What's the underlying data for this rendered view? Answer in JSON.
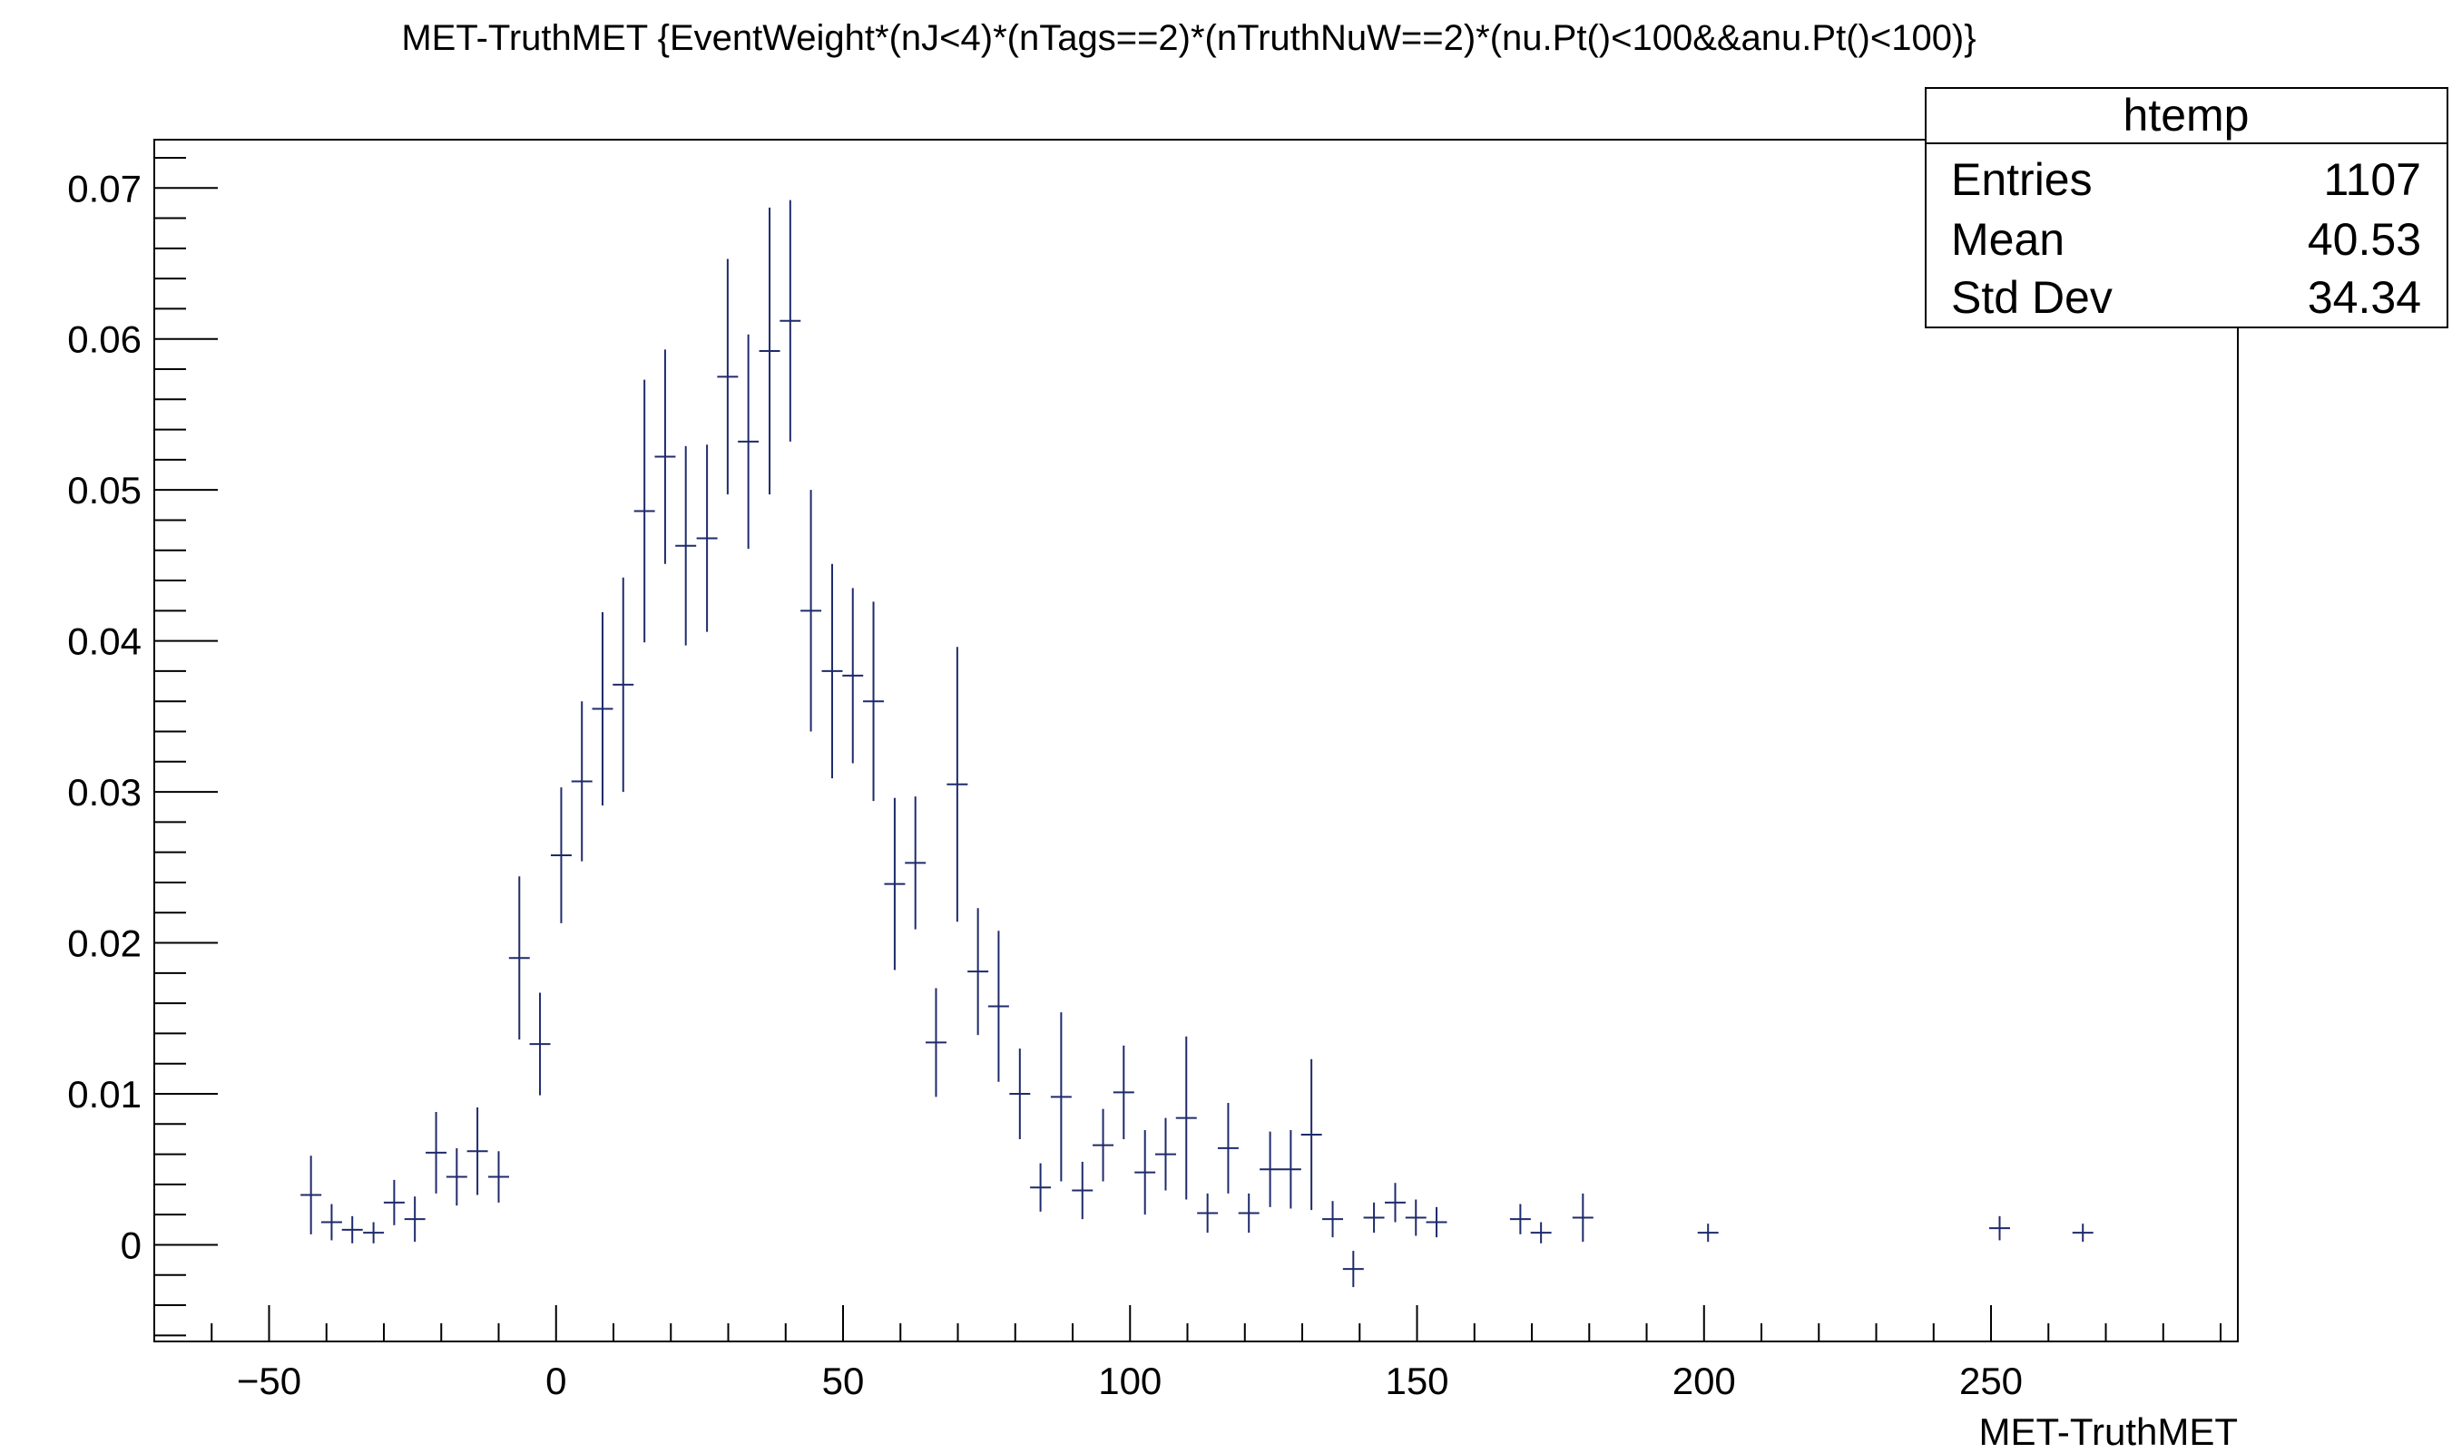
{
  "chart_data": {
    "type": "scatter",
    "title": "MET-TruthMET {EventWeight*(nJ<4)*(nTags==2)*(nTruthNuW==2)*(nu.Pt()<100&&anu.Pt()<100)}",
    "xlabel": "MET-TruthMET",
    "ylabel": "",
    "xlim": [
      -70,
      293
    ],
    "ylim": [
      -0.0064,
      0.0732
    ],
    "x_ticks": [
      -50,
      0,
      50,
      100,
      150,
      200,
      250
    ],
    "x_tick_labels": [
      "−50",
      "0",
      "50",
      "100",
      "150",
      "200",
      "250"
    ],
    "y_ticks": [
      0,
      0.01,
      0.02,
      0.03,
      0.04,
      0.05,
      0.06,
      0.07
    ],
    "y_tick_labels": [
      "0",
      "0.01",
      "0.02",
      "0.03",
      "0.04",
      "0.05",
      "0.06",
      "0.07"
    ],
    "bin_width": 3.63,
    "grid": false,
    "marker_color": "#1f2a6b",
    "points": [
      {
        "x": -42.7,
        "y": 0.0033,
        "err": 0.0026
      },
      {
        "x": -39.1,
        "y": 0.0015,
        "err": 0.0012
      },
      {
        "x": -35.5,
        "y": 0.001,
        "err": 0.0009
      },
      {
        "x": -31.8,
        "y": 0.0008,
        "err": 0.0007
      },
      {
        "x": -28.2,
        "y": 0.0028,
        "err": 0.0015
      },
      {
        "x": -24.6,
        "y": 0.0017,
        "err": 0.0015
      },
      {
        "x": -20.9,
        "y": 0.0061,
        "err": 0.0027
      },
      {
        "x": -17.3,
        "y": 0.0045,
        "err": 0.0019
      },
      {
        "x": -13.7,
        "y": 0.0062,
        "err": 0.0029
      },
      {
        "x": -10.0,
        "y": 0.0045,
        "err": 0.0017
      },
      {
        "x": -6.4,
        "y": 0.019,
        "err": 0.0054
      },
      {
        "x": -2.8,
        "y": 0.0133,
        "err": 0.0034
      },
      {
        "x": 0.9,
        "y": 0.0258,
        "err": 0.0045
      },
      {
        "x": 4.5,
        "y": 0.0307,
        "err": 0.0053
      },
      {
        "x": 8.1,
        "y": 0.0355,
        "err": 0.0064
      },
      {
        "x": 11.7,
        "y": 0.0371,
        "err": 0.0071
      },
      {
        "x": 15.4,
        "y": 0.0486,
        "err": 0.0087
      },
      {
        "x": 19.0,
        "y": 0.0522,
        "err": 0.0071
      },
      {
        "x": 22.6,
        "y": 0.0463,
        "err": 0.0066
      },
      {
        "x": 26.3,
        "y": 0.0468,
        "err": 0.0062
      },
      {
        "x": 29.9,
        "y": 0.0575,
        "err": 0.0078
      },
      {
        "x": 33.5,
        "y": 0.0532,
        "err": 0.0071
      },
      {
        "x": 37.2,
        "y": 0.0592,
        "err": 0.0095
      },
      {
        "x": 40.8,
        "y": 0.0612,
        "err": 0.008
      },
      {
        "x": 44.4,
        "y": 0.042,
        "err": 0.008
      },
      {
        "x": 48.1,
        "y": 0.038,
        "err": 0.0071
      },
      {
        "x": 51.7,
        "y": 0.0377,
        "err": 0.0058
      },
      {
        "x": 55.3,
        "y": 0.036,
        "err": 0.0066
      },
      {
        "x": 59.0,
        "y": 0.0239,
        "err": 0.0057
      },
      {
        "x": 62.6,
        "y": 0.0253,
        "err": 0.0044
      },
      {
        "x": 66.2,
        "y": 0.0134,
        "err": 0.0036
      },
      {
        "x": 69.9,
        "y": 0.0305,
        "err": 0.0091
      },
      {
        "x": 73.5,
        "y": 0.0181,
        "err": 0.0042
      },
      {
        "x": 77.1,
        "y": 0.0158,
        "err": 0.005
      },
      {
        "x": 80.8,
        "y": 0.01,
        "err": 0.003
      },
      {
        "x": 84.4,
        "y": 0.0038,
        "err": 0.0016
      },
      {
        "x": 88.0,
        "y": 0.0098,
        "err": 0.0056
      },
      {
        "x": 91.7,
        "y": 0.0036,
        "err": 0.0019
      },
      {
        "x": 95.3,
        "y": 0.0066,
        "err": 0.0024
      },
      {
        "x": 98.9,
        "y": 0.0101,
        "err": 0.0031
      },
      {
        "x": 102.6,
        "y": 0.0048,
        "err": 0.0028
      },
      {
        "x": 106.2,
        "y": 0.006,
        "err": 0.0024
      },
      {
        "x": 109.8,
        "y": 0.0084,
        "err": 0.0054
      },
      {
        "x": 113.5,
        "y": 0.0021,
        "err": 0.0013
      },
      {
        "x": 117.1,
        "y": 0.0064,
        "err": 0.003
      },
      {
        "x": 120.7,
        "y": 0.0021,
        "err": 0.0013
      },
      {
        "x": 124.4,
        "y": 0.005,
        "err": 0.0025
      },
      {
        "x": 128.0,
        "y": 0.005,
        "err": 0.0026
      },
      {
        "x": 131.6,
        "y": 0.0073,
        "err": 0.005
      },
      {
        "x": 135.3,
        "y": 0.0017,
        "err": 0.0012
      },
      {
        "x": 138.9,
        "y": -0.0016,
        "err": 0.0012
      },
      {
        "x": 142.5,
        "y": 0.0018,
        "err": 0.001
      },
      {
        "x": 146.2,
        "y": 0.0028,
        "err": 0.0013
      },
      {
        "x": 149.8,
        "y": 0.0018,
        "err": 0.0012
      },
      {
        "x": 153.4,
        "y": 0.0015,
        "err": 0.001
      },
      {
        "x": 168.0,
        "y": 0.0017,
        "err": 0.001
      },
      {
        "x": 171.6,
        "y": 0.0008,
        "err": 0.0007
      },
      {
        "x": 178.9,
        "y": 0.0018,
        "err": 0.0016
      },
      {
        "x": 200.7,
        "y": 0.0008,
        "err": 0.0006
      },
      {
        "x": 251.5,
        "y": 0.0011,
        "err": 0.0008
      },
      {
        "x": 266.0,
        "y": 0.0008,
        "err": 0.0006
      }
    ]
  },
  "stats_box": {
    "title": "htemp",
    "rows": [
      {
        "label": "Entries",
        "value": "1107"
      },
      {
        "label": "Mean",
        "value": "40.53"
      },
      {
        "label": "Std Dev",
        "value": "34.34"
      }
    ]
  }
}
